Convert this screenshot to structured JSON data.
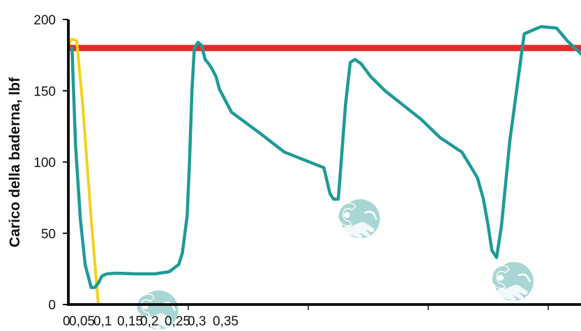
{
  "chart_data": {
    "type": "line",
    "title": "",
    "xlabel": "",
    "ylabel": "Carico della baderna, lbf",
    "ylim": [
      0,
      200
    ],
    "xlim": [
      0,
      0.35
    ],
    "y_ticks": [
      "0",
      "50",
      "100",
      "150",
      "200"
    ],
    "x_ticks": [
      "0",
      "0,05",
      "0,1",
      "0,15",
      "0,2",
      "0,25",
      "0,3",
      "0,35"
    ],
    "grid": false,
    "legend": "none",
    "colors": {
      "series_teal": "#1e9a96",
      "series_yellow": "#f3d11c",
      "threshold_red": "#e52a2a",
      "axis": "#111111",
      "icon": "#a8d6d4"
    },
    "threshold": {
      "y": 180
    },
    "series": [
      {
        "color": "#1e9a96",
        "x": [
          0.0015,
          0.003,
          0.005,
          0.007,
          0.0095,
          0.011,
          0.0125,
          0.014,
          0.016,
          0.02,
          0.028,
          0.036,
          0.042,
          0.046,
          0.0475,
          0.0495,
          0.0505,
          0.0515,
          0.0525,
          0.054,
          0.0555,
          0.057,
          0.0585,
          0.06,
          0.0615,
          0.063,
          0.068,
          0.08,
          0.09,
          0.1065,
          0.109,
          0.1105,
          0.1125,
          0.1135,
          0.1155,
          0.1175,
          0.1195,
          0.122,
          0.126,
          0.132,
          0.138,
          0.147,
          0.155,
          0.164,
          0.1705,
          0.173,
          0.175,
          0.1765,
          0.1785,
          0.1805,
          0.184,
          0.19,
          0.197,
          0.2035,
          0.208,
          0.2155,
          0.2185,
          0.2205,
          0.222,
          0.2245,
          0.227,
          0.23,
          0.2335,
          0.245,
          0.255,
          0.265,
          0.272,
          0.2765,
          0.28,
          0.2835,
          0.289,
          0.291,
          0.294,
          0.296,
          0.298,
          0.303,
          0.308,
          0.3115,
          0.313,
          0.3165,
          0.3195,
          0.3225,
          0.325,
          0.3275,
          0.33,
          0.332,
          0.3335,
          0.3355
        ],
        "y": [
          180,
          112,
          60,
          28,
          12,
          12,
          15,
          20,
          21.5,
          22,
          21.5,
          21.5,
          23,
          28,
          36,
          62,
          100,
          150,
          180,
          184,
          182,
          172,
          169,
          165,
          160,
          151,
          135,
          120,
          107,
          96,
          78,
          74,
          74,
          95,
          140,
          170,
          172,
          169,
          160,
          150,
          142,
          130,
          117,
          107,
          89,
          74,
          55,
          38,
          33,
          55,
          115,
          190,
          195,
          194,
          185,
          173,
          165,
          158,
          155,
          153,
          151,
          149,
          147,
          130,
          116,
          103,
          95,
          88,
          73,
          62,
          62,
          80,
          110,
          138,
          143,
          140,
          125,
          118,
          110,
          104,
          95,
          80,
          65,
          58,
          55,
          60,
          72,
          78
        ]
      },
      {
        "color": "#f3d11c",
        "x": [
          0.0005,
          0.001,
          0.002,
          0.0035,
          0.006,
          0.0095,
          0.0125,
          0.0145
        ],
        "y": [
          183,
          186,
          186,
          185,
          140,
          60,
          0,
          0
        ]
      }
    ]
  }
}
